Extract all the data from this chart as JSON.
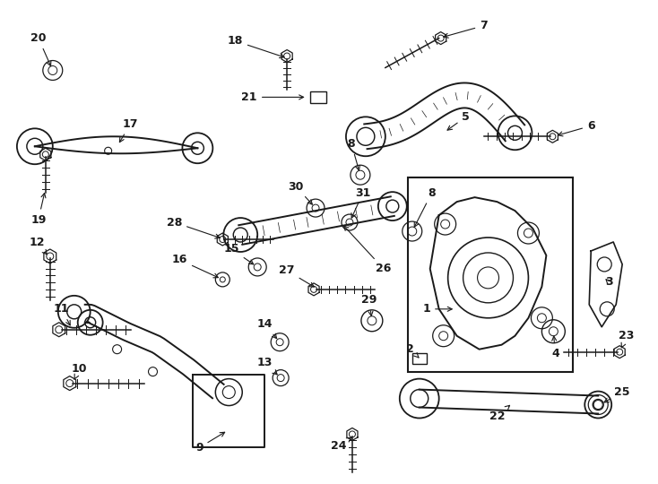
{
  "background_color": "#ffffff",
  "line_color": "#1a1a1a",
  "label_color": "#1a1a1a",
  "fig_width": 7.34,
  "fig_height": 5.4,
  "dpi": 100
}
